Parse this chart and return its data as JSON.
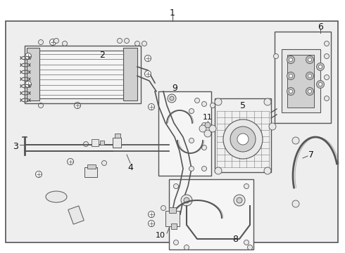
{
  "bg_color": "#ffffff",
  "border_color": "#555555",
  "line_color": "#555555",
  "label_color": "#111111",
  "fill_light": "#e8e8e8",
  "fill_mid": "#d0d0d0",
  "fill_dark": "#b8b8b8"
}
